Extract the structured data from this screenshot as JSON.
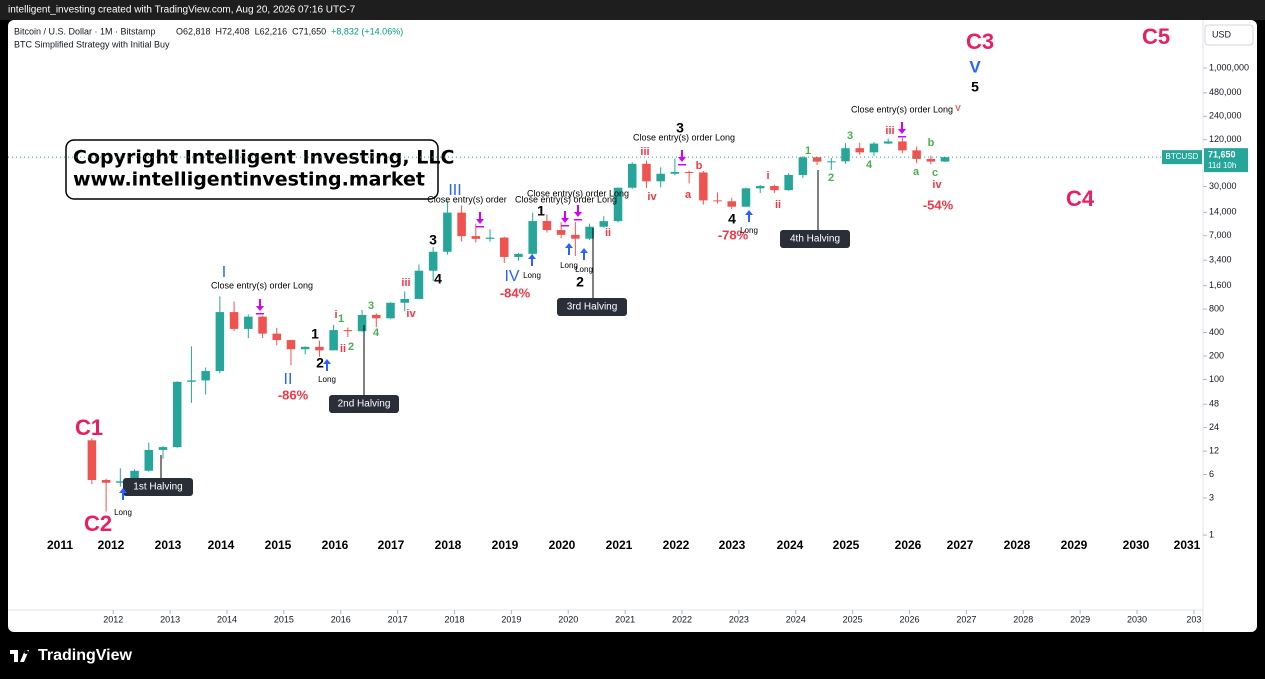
{
  "top_bar": "intelligent_investing created with TradingView.com, Aug 20, 2026 07:16 UTC-7",
  "brand": "TradingView",
  "copyright": [
    "Copyright Intelligent Investing, LLC",
    "www.intelligentinvesting.market"
  ],
  "chart_data": {
    "type": "candlestick",
    "symbol": "Bitcoin / U.S. Dollar · 1M · Bitstamp",
    "ohlc_labels": [
      "O62,818",
      "H72,408",
      "L62,216",
      "C71,650",
      "+8,832 (+14.06%)"
    ],
    "strategy": "BTC Simplified Strategy with Initial Buy",
    "currency": "USD",
    "ticker": "BTCUSD",
    "last_price_label": "71,650",
    "countdown": "11d 10h",
    "up_color": "#26a69a",
    "down_color": "#ef5350",
    "log_scale": true,
    "x": [
      2011.625,
      2011.875,
      2012.125,
      2012.375,
      2012.625,
      2012.875,
      2013.125,
      2013.375,
      2013.625,
      2013.875,
      2014.125,
      2014.375,
      2014.625,
      2014.875,
      2015.125,
      2015.375,
      2015.625,
      2015.875,
      2016.125,
      2016.375,
      2016.625,
      2016.875,
      2017.125,
      2017.375,
      2017.625,
      2017.875,
      2018.125,
      2018.375,
      2018.625,
      2018.875,
      2019.125,
      2019.375,
      2019.625,
      2019.875,
      2020.125,
      2020.375,
      2020.625,
      2020.875,
      2021.125,
      2021.375,
      2021.625,
      2021.875,
      2022.125,
      2022.375,
      2022.625,
      2022.875,
      2023.125,
      2023.375,
      2023.625,
      2023.875,
      2024.125,
      2024.375,
      2024.625,
      2024.875,
      2025.125,
      2025.375,
      2025.625,
      2025.875,
      2026.125,
      2026.375,
      2026.625
    ],
    "open": [
      16.5,
      5.1,
      4.7,
      4.9,
      6.7,
      12.4,
      13.5,
      93,
      97,
      128,
      732,
      445,
      640,
      387,
      320,
      244,
      262,
      236,
      430,
      416,
      673,
      609,
      964,
      1080,
      2490,
      4360,
      13880,
      6930,
      6390,
      6630,
      3740,
      4100,
      10820,
      8290,
      7200,
      6420,
      9140,
      10780,
      28990,
      58800,
      35040,
      43820,
      46200,
      45540,
      19940,
      19430,
      16540,
      28480,
      30480,
      26970,
      42280,
      71300,
      62700,
      63300,
      93400,
      82500,
      107100,
      114000,
      87500,
      68000,
      62818
    ],
    "high": [
      17.5,
      5.3,
      7.2,
      7.0,
      15.4,
      13.9,
      95,
      266,
      142,
      1163,
      1000,
      680,
      655,
      460,
      320,
      265,
      315,
      502,
      463,
      780,
      705,
      980,
      1350,
      2980,
      5000,
      19700,
      17200,
      9990,
      8500,
      6800,
      4200,
      13880,
      13200,
      10500,
      10500,
      10000,
      12470,
      29300,
      61800,
      64900,
      52900,
      69000,
      48200,
      47500,
      25200,
      21500,
      29200,
      31400,
      31800,
      44700,
      73800,
      72700,
      70000,
      108300,
      109600,
      111900,
      124500,
      126000,
      97900,
      75000,
      72408
    ],
    "low": [
      4.5,
      2.0,
      4.2,
      4.8,
      6.5,
      9.6,
      13.2,
      50,
      64,
      120,
      420,
      340,
      340,
      275,
      152,
      210,
      196,
      235,
      350,
      410,
      470,
      600,
      750,
      1070,
      1830,
      4000,
      5900,
      5750,
      5880,
      3120,
      3350,
      4030,
      7700,
      6500,
      3850,
      6150,
      8900,
      10400,
      28000,
      28800,
      29300,
      42000,
      32900,
      17600,
      18150,
      15480,
      16500,
      24750,
      24900,
      26550,
      38500,
      56500,
      49000,
      58900,
      76600,
      74400,
      105200,
      80600,
      60000,
      58000,
      62216
    ],
    "close": [
      5.1,
      4.7,
      4.9,
      6.7,
      12.4,
      13.5,
      93,
      97,
      128,
      732,
      445,
      640,
      387,
      320,
      244,
      262,
      236,
      430,
      416,
      673,
      609,
      964,
      1080,
      2490,
      4360,
      13880,
      6930,
      6390,
      6630,
      3740,
      4100,
      10820,
      8290,
      7200,
      6420,
      9140,
      10780,
      28990,
      58800,
      35040,
      43820,
      46200,
      45540,
      19940,
      19430,
      16540,
      28480,
      30480,
      26970,
      42280,
      71300,
      62700,
      63300,
      93400,
      82500,
      107100,
      114000,
      87500,
      68000,
      62818,
      71650
    ],
    "xlim": [
      2010.15,
      2031.16
    ],
    "xticks": [
      2012,
      2013,
      2014,
      2015,
      2016,
      2017,
      2018,
      2019,
      2020,
      2021,
      2022,
      2023,
      2024,
      2025,
      2026,
      2027,
      2028,
      2029,
      2030,
      {
        "value": 2031,
        "label": "203"
      }
    ],
    "ylim": [
      0.109,
      4140000
    ],
    "yticks": [
      1,
      3,
      6,
      12,
      24,
      48,
      100,
      200,
      400,
      800,
      {
        "value": 1600,
        "label": "1,600"
      },
      {
        "value": 3400,
        "label": "3,400"
      },
      {
        "value": 7000,
        "label": "7,000"
      },
      {
        "value": 14000,
        "label": "14,000"
      },
      {
        "value": 30000,
        "label": "30,000"
      },
      {
        "value": 120000,
        "label": "120,000"
      },
      {
        "value": 240000,
        "label": "240,000"
      },
      {
        "value": 480000,
        "label": "480,000"
      },
      {
        "value": 1000000,
        "label": "1,000,000"
      }
    ],
    "year_labels": [
      "2011",
      "2012",
      "2013",
      "2014",
      "2015",
      "2016",
      "2017",
      "2018",
      "2019",
      "2020",
      "2021",
      "2022",
      "2023",
      "2024",
      "2025",
      "2026",
      "2027",
      "2028",
      "2029",
      "2030",
      "2031"
    ],
    "halvings": [
      "1st Halving",
      "2nd Halving",
      "3rd Halving",
      "4th Halving"
    ],
    "annotations": [
      {
        "text": "C1",
        "color": "#e91e63"
      },
      {
        "text": "C2",
        "color": "#e91e63"
      },
      {
        "text": "C3",
        "color": "#e91e63"
      },
      {
        "text": "C4",
        "color": "#e91e63"
      },
      {
        "text": "C5",
        "color": "#e91e63"
      },
      {
        "text": "V",
        "color": "#2962ff"
      },
      {
        "text": "5",
        "color": "#000000"
      },
      {
        "text": "v",
        "color": "#f23645"
      },
      {
        "text": "I",
        "color": "#2962ff"
      },
      {
        "text": "II",
        "color": "#2962ff"
      },
      {
        "text": "III",
        "color": "#2962ff"
      },
      {
        "text": "IV",
        "color": "#2962ff"
      },
      {
        "text": "-86%",
        "color": "#f23645"
      },
      {
        "text": "-84%",
        "color": "#f23645"
      },
      {
        "text": "-78%",
        "color": "#f23645"
      },
      {
        "text": "-54%",
        "color": "#f23645"
      },
      {
        "text": "1",
        "color": "#000000"
      },
      {
        "text": "2",
        "color": "#000000"
      },
      {
        "text": "3",
        "color": "#000000"
      },
      {
        "text": "4",
        "color": "#000000"
      },
      {
        "text": "1",
        "color": "#000000"
      },
      {
        "text": "2",
        "color": "#000000"
      },
      {
        "text": "3",
        "color": "#000000"
      },
      {
        "text": "4",
        "color": "#000000"
      },
      {
        "text": "1",
        "color": "#4caf50"
      },
      {
        "text": "2",
        "color": "#4caf50"
      },
      {
        "text": "3",
        "color": "#4caf50"
      },
      {
        "text": "4",
        "color": "#4caf50"
      },
      {
        "text": "1",
        "color": "#4caf50"
      },
      {
        "text": "2",
        "color": "#4caf50"
      },
      {
        "text": "3",
        "color": "#4caf50"
      },
      {
        "text": "4",
        "color": "#4caf50"
      },
      {
        "text": "a",
        "color": "#4caf50"
      },
      {
        "text": "b",
        "color": "#4caf50"
      },
      {
        "text": "c",
        "color": "#4caf50"
      },
      {
        "text": "i",
        "color": "#f23645"
      },
      {
        "text": "ii",
        "color": "#f23645"
      },
      {
        "text": "iii",
        "color": "#f23645"
      },
      {
        "text": "iv",
        "color": "#f23645"
      },
      {
        "text": "iii",
        "color": "#f23645"
      },
      {
        "text": "iv",
        "color": "#f23645"
      },
      {
        "text": "b",
        "color": "#f23645"
      },
      {
        "text": "a",
        "color": "#f23645"
      },
      {
        "text": "ii",
        "color": "#f23645"
      },
      {
        "text": "i",
        "color": "#f23645"
      },
      {
        "text": "ii",
        "color": "#f23645"
      },
      {
        "text": "iii",
        "color": "#f23645"
      },
      {
        "text": "iv",
        "color": "#f23645"
      },
      {
        "text": "Close entry(s) order Long",
        "color": "#000000"
      },
      {
        "text": "Close entry(s) order",
        "color": "#000000"
      },
      {
        "text": "Close entry(s) order Long",
        "color": "#000000"
      },
      {
        "text": "Close entry(s) order Long",
        "color": "#000000"
      },
      {
        "text": "Close entry(s) order Long",
        "color": "#000000"
      },
      {
        "text": "Close entry(s) order Long",
        "color": "#000000"
      },
      {
        "text": "Long",
        "color": "#000000"
      },
      {
        "text": "Long",
        "color": "#000000"
      },
      {
        "text": "Long",
        "color": "#000000"
      },
      {
        "text": "Long",
        "color": "#000000"
      },
      {
        "text": "Long",
        "color": "#000000"
      },
      {
        "text": "Long",
        "color": "#000000"
      }
    ]
  }
}
